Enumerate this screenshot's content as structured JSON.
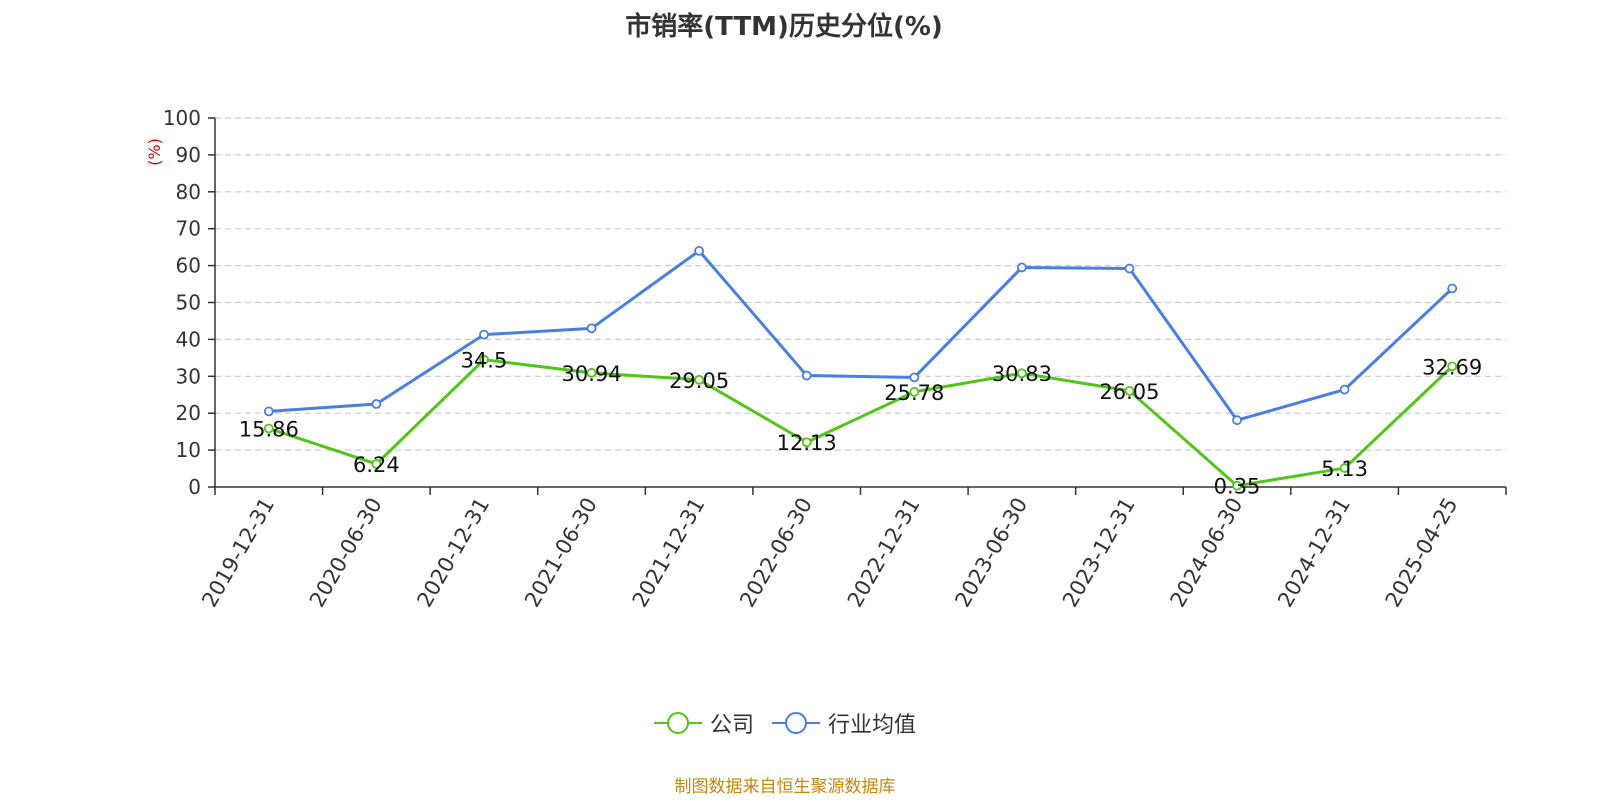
{
  "title": "市销率(TTM)历史分位(%)",
  "source": "制图数据来自恒生聚源数据库",
  "chart_data": {
    "type": "line",
    "title": "市销率(TTM)历史分位(%)",
    "ylabel": "(%)",
    "xlabel": "",
    "ylim": [
      0,
      100
    ],
    "yticks": [
      0,
      10,
      20,
      30,
      40,
      50,
      60,
      70,
      80,
      90,
      100
    ],
    "grid": true,
    "legend_position": "bottom-center",
    "categories": [
      "2019-12-31",
      "2020-06-30",
      "2020-12-31",
      "2021-06-30",
      "2021-12-31",
      "2022-06-30",
      "2022-12-31",
      "2023-06-30",
      "2023-12-31",
      "2024-06-30",
      "2024-12-31",
      "2025-04-25"
    ],
    "series": [
      {
        "name": "公司",
        "color": "#52c41a",
        "show_labels": true,
        "values": [
          15.86,
          6.24,
          34.5,
          30.94,
          29.05,
          12.13,
          25.78,
          30.83,
          26.05,
          0.35,
          5.13,
          32.69
        ],
        "labels": [
          "15.86",
          "6.24",
          "34.5",
          "30.94",
          "29.05",
          "12.13",
          "25.78",
          "30.83",
          "26.05",
          "0.35",
          "5.13",
          "32.69"
        ]
      },
      {
        "name": "行业均值",
        "color": "#4a7fdf",
        "show_labels": false,
        "values": [
          20.5,
          22.5,
          41.3,
          43.0,
          64.0,
          30.2,
          29.7,
          59.5,
          59.2,
          18.1,
          26.4,
          53.8
        ]
      }
    ]
  }
}
